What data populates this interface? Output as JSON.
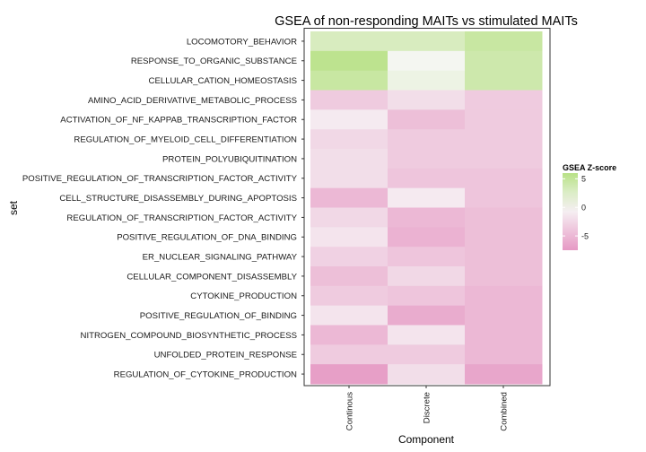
{
  "chart_data": {
    "type": "heatmap",
    "title": "GSEA of non-responding MAITs vs stimulated MAITs",
    "xlabel": "Component",
    "ylabel": "set",
    "x_categories": [
      "Continous",
      "Discrete",
      "Combined"
    ],
    "y_categories": [
      "LOCOMOTORY_BEHAVIOR",
      "RESPONSE_TO_ORGANIC_SUBSTANCE",
      "CELLULAR_CATION_HOMEOSTASIS",
      "AMINO_ACID_DERIVATIVE_METABOLIC_PROCESS",
      "ACTIVATION_OF_NF_KAPPAB_TRANSCRIPTION_FACTOR",
      "REGULATION_OF_MYELOID_CELL_DIFFERENTIATION",
      "PROTEIN_POLYUBIQUITINATION",
      "POSITIVE_REGULATION_OF_TRANSCRIPTION_FACTOR_ACTIVITY",
      "CELL_STRUCTURE_DISASSEMBLY_DURING_APOPTOSIS",
      "REGULATION_OF_TRANSCRIPTION_FACTOR_ACTIVITY",
      "POSITIVE_REGULATION_OF_DNA_BINDING",
      "ER_NUCLEAR_SIGNALING_PATHWAY",
      "CELLULAR_COMPONENT_DISASSEMBLY",
      "CYTOKINE_PRODUCTION",
      "POSITIVE_REGULATION_OF_BINDING",
      "NITROGEN_COMPOUND_BIOSYNTHETIC_PROCESS",
      "UNFOLDED_PROTEIN_RESPONSE",
      "REGULATION_OF_CYTOKINE_PRODUCTION"
    ],
    "values": [
      [
        3.0,
        3.0,
        4.5
      ],
      [
        5.5,
        0.3,
        4.0
      ],
      [
        4.5,
        1.0,
        4.0
      ],
      [
        -3.5,
        -2.0,
        -3.5
      ],
      [
        -1.0,
        -4.5,
        -3.5
      ],
      [
        -2.5,
        -3.5,
        -3.5
      ],
      [
        -2.0,
        -3.5,
        -3.5
      ],
      [
        -2.0,
        -4.0,
        -4.0
      ],
      [
        -5.0,
        -1.0,
        -4.0
      ],
      [
        -2.5,
        -5.0,
        -4.5
      ],
      [
        -1.5,
        -5.5,
        -4.5
      ],
      [
        -3.0,
        -4.0,
        -4.5
      ],
      [
        -4.5,
        -2.5,
        -4.5
      ],
      [
        -3.5,
        -4.0,
        -5.0
      ],
      [
        -1.5,
        -6.0,
        -5.0
      ],
      [
        -5.0,
        -1.5,
        -5.0
      ],
      [
        -3.5,
        -3.5,
        -5.0
      ],
      [
        -7.0,
        -2.0,
        -6.5
      ]
    ],
    "legend": {
      "title": "GSEA Z-score",
      "position": "right",
      "ticks": [
        5,
        0,
        -5
      ],
      "range": [
        -7.5,
        6
      ],
      "colors": {
        "low": "#e699c4",
        "mid": "#f7f7f7",
        "high": "#b8e186"
      }
    },
    "grid": false
  }
}
